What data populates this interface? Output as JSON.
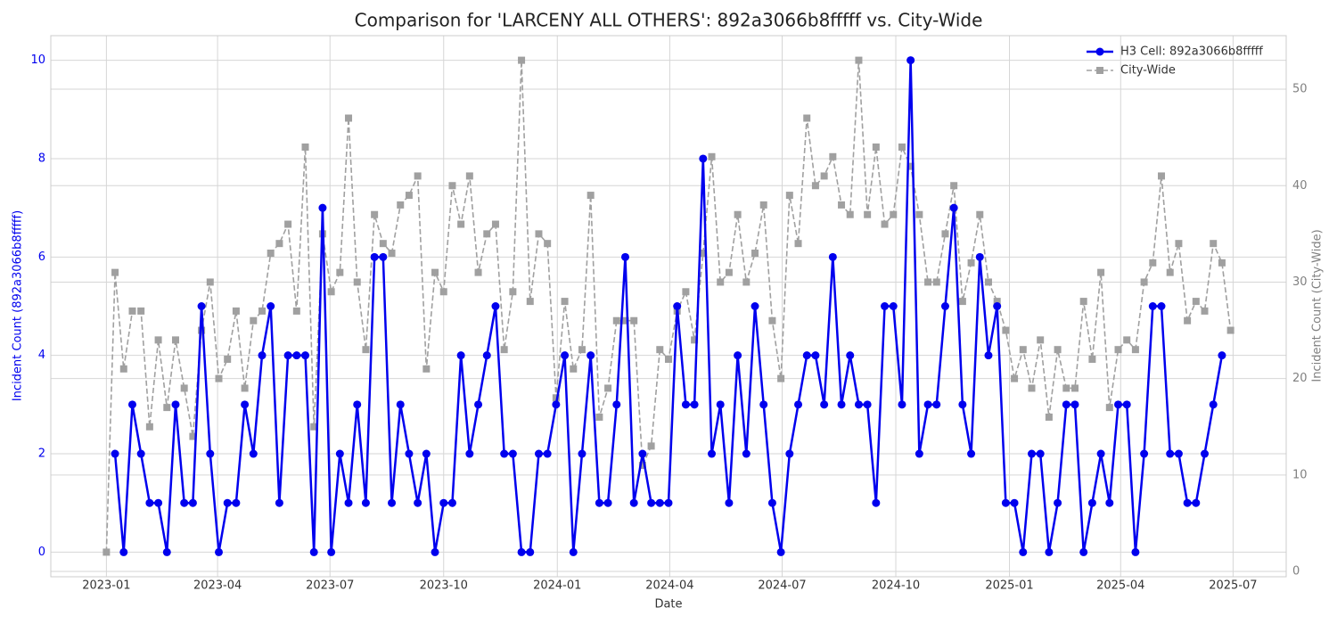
{
  "chart_data": {
    "type": "line",
    "title": "Comparison for 'LARCENY ALL OTHERS': 892a3066b8fffff vs. City-Wide",
    "x_label": "Date",
    "y_label": "Incident Count (892a3066b8fffff)",
    "y2_label": "Incident Count (City-Wide)",
    "x": [
      "2023-01-01",
      "2023-01-08",
      "2023-01-15",
      "2023-01-22",
      "2023-01-29",
      "2023-02-05",
      "2023-02-12",
      "2023-02-19",
      "2023-02-26",
      "2023-03-05",
      "2023-03-12",
      "2023-03-19",
      "2023-03-26",
      "2023-04-02",
      "2023-04-09",
      "2023-04-16",
      "2023-04-23",
      "2023-04-30",
      "2023-05-07",
      "2023-05-14",
      "2023-05-21",
      "2023-05-28",
      "2023-06-04",
      "2023-06-11",
      "2023-06-18",
      "2023-06-25",
      "2023-07-02",
      "2023-07-09",
      "2023-07-16",
      "2023-07-23",
      "2023-07-30",
      "2023-08-06",
      "2023-08-13",
      "2023-08-20",
      "2023-08-27",
      "2023-09-03",
      "2023-09-10",
      "2023-09-17",
      "2023-09-24",
      "2023-10-01",
      "2023-10-08",
      "2023-10-15",
      "2023-10-22",
      "2023-10-29",
      "2023-11-05",
      "2023-11-12",
      "2023-11-19",
      "2023-11-26",
      "2023-12-03",
      "2023-12-10",
      "2023-12-17",
      "2023-12-24",
      "2023-12-31",
      "2024-01-07",
      "2024-01-14",
      "2024-01-21",
      "2024-01-28",
      "2024-02-04",
      "2024-02-11",
      "2024-02-18",
      "2024-02-25",
      "2024-03-03",
      "2024-03-10",
      "2024-03-17",
      "2024-03-24",
      "2024-03-31",
      "2024-04-07",
      "2024-04-14",
      "2024-04-21",
      "2024-04-28",
      "2024-05-05",
      "2024-05-12",
      "2024-05-19",
      "2024-05-26",
      "2024-06-02",
      "2024-06-09",
      "2024-06-16",
      "2024-06-23",
      "2024-06-30",
      "2024-07-07",
      "2024-07-14",
      "2024-07-21",
      "2024-07-28",
      "2024-08-04",
      "2024-08-11",
      "2024-08-18",
      "2024-08-25",
      "2024-09-01",
      "2024-09-08",
      "2024-09-15",
      "2024-09-22",
      "2024-09-29",
      "2024-10-06",
      "2024-10-13",
      "2024-10-20",
      "2024-10-27",
      "2024-11-03",
      "2024-11-10",
      "2024-11-17",
      "2024-11-24",
      "2024-12-01",
      "2024-12-08",
      "2024-12-15",
      "2024-12-22",
      "2024-12-29",
      "2025-01-05",
      "2025-01-12",
      "2025-01-19",
      "2025-01-26",
      "2025-02-02",
      "2025-02-09",
      "2025-02-16",
      "2025-02-23",
      "2025-03-02",
      "2025-03-09",
      "2025-03-16",
      "2025-03-23",
      "2025-03-30",
      "2025-04-06",
      "2025-04-13",
      "2025-04-20",
      "2025-04-27",
      "2025-05-04",
      "2025-05-11",
      "2025-05-18",
      "2025-05-25",
      "2025-06-01",
      "2025-06-08",
      "2025-06-15",
      "2025-06-22",
      "2025-06-29"
    ],
    "series": [
      {
        "name": "H3 Cell: 892a3066b8fffff",
        "color": "#0000ee",
        "linestyle": "solid",
        "marker": "circle",
        "axis": "y",
        "values": [
          null,
          2,
          0,
          3,
          2,
          1,
          1,
          0,
          3,
          1,
          1,
          5,
          2,
          0,
          1,
          1,
          3,
          2,
          4,
          5,
          1,
          4,
          4,
          4,
          0,
          7,
          0,
          2,
          1,
          3,
          1,
          6,
          6,
          1,
          3,
          2,
          1,
          2,
          0,
          1,
          1,
          4,
          2,
          3,
          4,
          5,
          2,
          2,
          0,
          0,
          2,
          2,
          3,
          4,
          0,
          2,
          4,
          1,
          1,
          3,
          6,
          1,
          2,
          1,
          1,
          1,
          5,
          3,
          3,
          8,
          2,
          3,
          1,
          4,
          2,
          5,
          3,
          1,
          0,
          2,
          3,
          4,
          4,
          3,
          6,
          3,
          4,
          3,
          3,
          1,
          5,
          5,
          3,
          10,
          2,
          3,
          3,
          5,
          7,
          3,
          2,
          6,
          4,
          5,
          1,
          1,
          0,
          2,
          2,
          0,
          1,
          3,
          3,
          0,
          1,
          2,
          1,
          3,
          3,
          0,
          2,
          5,
          5,
          2,
          2,
          1,
          1,
          2,
          3,
          4,
          null
        ]
      },
      {
        "name": "City-Wide",
        "color": "#a0a0a0",
        "linestyle": "dashed",
        "marker": "square",
        "axis": "y2",
        "values": [
          2,
          31,
          21,
          27,
          27,
          15,
          24,
          17,
          24,
          19,
          14,
          25,
          30,
          20,
          22,
          27,
          19,
          26,
          27,
          33,
          34,
          36,
          27,
          44,
          15,
          35,
          29,
          31,
          47,
          30,
          23,
          37,
          34,
          33,
          38,
          39,
          41,
          21,
          31,
          29,
          40,
          36,
          41,
          31,
          35,
          36,
          23,
          29,
          53,
          28,
          35,
          34,
          18,
          28,
          21,
          23,
          39,
          16,
          19,
          26,
          26,
          26,
          11,
          13,
          23,
          22,
          27,
          29,
          24,
          33,
          43,
          30,
          31,
          37,
          30,
          33,
          38,
          26,
          20,
          39,
          34,
          47,
          40,
          41,
          43,
          38,
          37,
          53,
          37,
          44,
          36,
          37,
          44,
          42,
          37,
          30,
          30,
          35,
          40,
          28,
          32,
          37,
          30,
          28,
          25,
          20,
          23,
          19,
          24,
          16,
          23,
          19,
          19,
          28,
          22,
          31,
          17,
          23,
          24,
          23,
          30,
          32,
          41,
          31,
          34,
          26,
          28,
          27,
          34,
          32,
          25
        ]
      }
    ],
    "xlim": [
      "2022-11-17",
      "2025-08-13"
    ],
    "xticks": [
      {
        "value": "2023-01-01",
        "label": "2023-01"
      },
      {
        "value": "2023-04-01",
        "label": "2023-04"
      },
      {
        "value": "2023-07-01",
        "label": "2023-07"
      },
      {
        "value": "2023-10-01",
        "label": "2023-10"
      },
      {
        "value": "2024-01-01",
        "label": "2024-01"
      },
      {
        "value": "2024-04-01",
        "label": "2024-04"
      },
      {
        "value": "2024-07-01",
        "label": "2024-07"
      },
      {
        "value": "2024-10-01",
        "label": "2024-10"
      },
      {
        "value": "2025-01-01",
        "label": "2025-01"
      },
      {
        "value": "2025-04-01",
        "label": "2025-04"
      },
      {
        "value": "2025-07-01",
        "label": "2025-07"
      }
    ],
    "ylim": [
      -0.5,
      10.5
    ],
    "yticks": [
      0,
      2,
      4,
      6,
      8,
      10
    ],
    "y2lim": [
      -0.55,
      55.55
    ],
    "y2ticks": [
      0,
      10,
      20,
      30,
      40,
      50
    ],
    "grid": true,
    "legend": "upper right"
  }
}
